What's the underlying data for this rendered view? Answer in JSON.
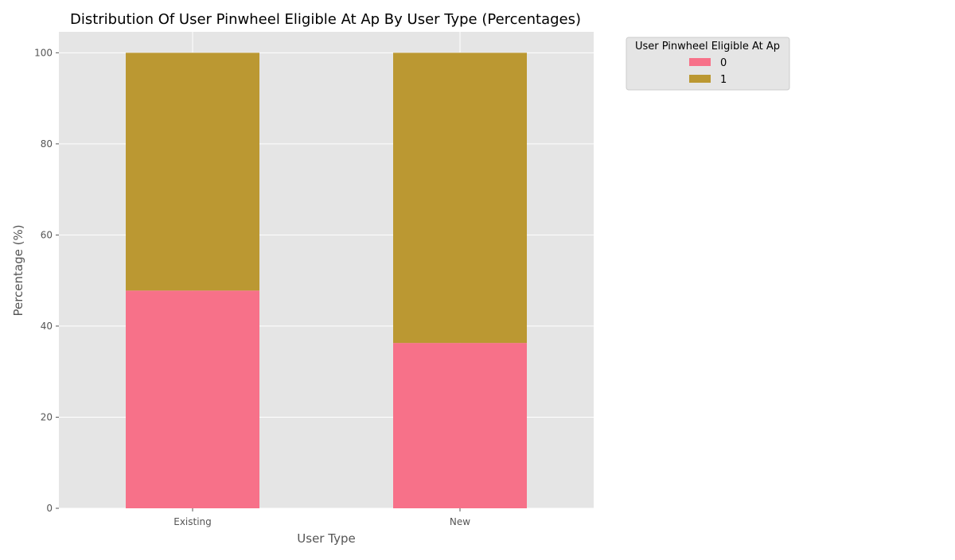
{
  "chart_data": {
    "type": "bar",
    "stacked": true,
    "title": "Distribution Of User Pinwheel Eligible At Ap By User Type (Percentages)",
    "xlabel": "User Type",
    "ylabel": "Percentage (%)",
    "categories": [
      "Existing",
      "New"
    ],
    "series": [
      {
        "name": "0",
        "values": [
          47.8,
          36.3
        ],
        "color": "#f77189"
      },
      {
        "name": "1",
        "values": [
          52.2,
          63.7
        ],
        "color": "#bb9832"
      }
    ],
    "ylim": [
      0,
      104.6
    ],
    "yticks": [
      0,
      20,
      40,
      60,
      80,
      100
    ],
    "grid": true,
    "background": "#e5e5e5",
    "legend": {
      "title": "User Pinwheel Eligible At Ap",
      "placement": "outside-top-right"
    }
  }
}
